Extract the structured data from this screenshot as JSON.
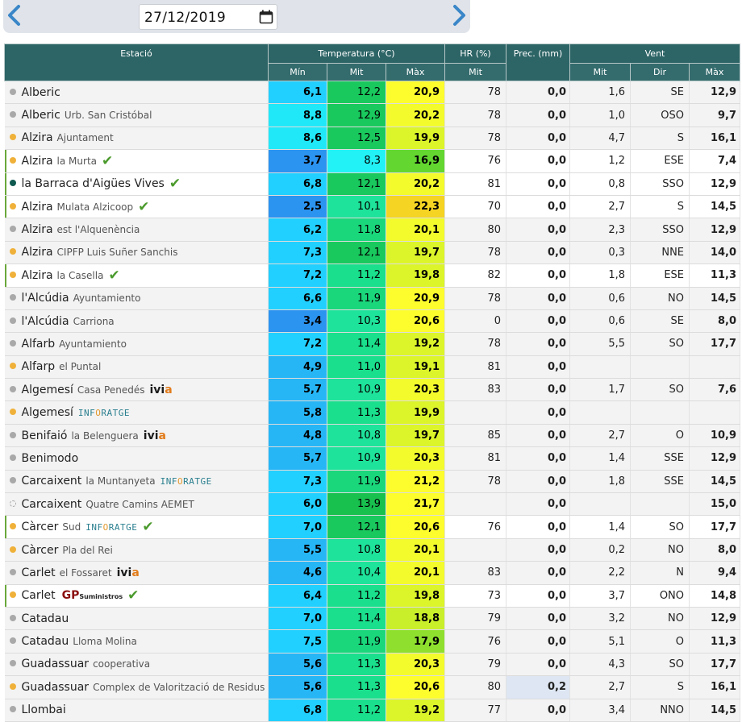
{
  "toolbar": {
    "prev_icon": "chevron-left-icon",
    "next_icon": "chevron-right-icon",
    "date_value": "27/12/2019",
    "calendar_icon": "calendar-icon"
  },
  "table": {
    "headers": {
      "station": "Estació",
      "temperature": "Temperatura (°C)",
      "humidity": "HR (%)",
      "precipitation": "Prec. (mm)",
      "wind": "Vent",
      "temp_min": "Mín",
      "temp_mit": "Mit",
      "temp_max": "Màx",
      "hr_mit": "Mit",
      "wind_mit": "Mit",
      "wind_dir": "Dir",
      "wind_max": "Màx"
    },
    "colors": {
      "dot_grey": "#a9a9a9",
      "dot_orange": "#f0b13a",
      "dot_teal": "#0f5a50",
      "check": "#4a9a2c",
      "header": "#2d6466"
    },
    "rows": [
      {
        "name": "Alberic",
        "loc": "",
        "dot": "grey",
        "hl": false,
        "badge": "",
        "check": false,
        "min": "6,1",
        "mit": "12,2",
        "max": "20,9",
        "hr": "78",
        "prec": "0,0",
        "vmit": "1,6",
        "vdir": "SE",
        "vmax": "12,9",
        "cmin": "#22d0ff",
        "cmit": "#19c95e",
        "cmax": "#fdfd2e"
      },
      {
        "name": "Alberic",
        "loc": "Urb. San Cristóbal",
        "dot": "grey",
        "hl": false,
        "badge": "",
        "check": false,
        "min": "8,8",
        "mit": "12,9",
        "max": "20,2",
        "hr": "78",
        "prec": "0,0",
        "vmit": "1,0",
        "vdir": "OSO",
        "vmax": "9,7",
        "cmin": "#20e8f8",
        "cmit": "#19c95e",
        "cmax": "#f3fb2d"
      },
      {
        "name": "Alzira",
        "loc": "Ajuntament",
        "dot": "orange",
        "hl": false,
        "badge": "",
        "check": false,
        "min": "8,6",
        "mit": "12,5",
        "max": "19,9",
        "hr": "78",
        "prec": "0,0",
        "vmit": "4,7",
        "vdir": "S",
        "vmax": "16,1",
        "cmin": "#20e8f8",
        "cmit": "#19c95e",
        "cmax": "#dcf52a"
      },
      {
        "name": "Alzira",
        "loc": "la Murta",
        "dot": "orange",
        "hl": true,
        "badge": "",
        "check": true,
        "min": "3,7",
        "mit": "8,3",
        "max": "16,9",
        "hr": "76",
        "prec": "0,0",
        "vmit": "1,2",
        "vdir": "ESE",
        "vmax": "7,4",
        "cmin": "#2b93f0",
        "cmit": "#22f2f6",
        "cmax": "#63d630"
      },
      {
        "name": "la Barraca d'Aigües Vives",
        "loc": "",
        "dot": "teal",
        "hl": true,
        "badge": "",
        "check": true,
        "min": "6,8",
        "mit": "12,1",
        "max": "20,2",
        "hr": "81",
        "prec": "0,0",
        "vmit": "0,8",
        "vdir": "SSO",
        "vmax": "12,9",
        "cmin": "#22d0ff",
        "cmit": "#19c95e",
        "cmax": "#f3fb2d"
      },
      {
        "name": "Alzira",
        "loc": "Mulata Alzicoop",
        "dot": "orange",
        "hl": true,
        "badge": "",
        "check": true,
        "min": "2,5",
        "mit": "10,1",
        "max": "22,3",
        "hr": "70",
        "prec": "0,0",
        "vmit": "2,7",
        "vdir": "S",
        "vmax": "14,5",
        "cmin": "#2b93f0",
        "cmit": "#1ee39a",
        "cmax": "#f5d423"
      },
      {
        "name": "Alzira",
        "loc": "est l'Alquenència",
        "dot": "grey",
        "hl": false,
        "badge": "",
        "check": false,
        "min": "6,2",
        "mit": "11,8",
        "max": "20,1",
        "hr": "80",
        "prec": "0,0",
        "vmit": "2,3",
        "vdir": "SSO",
        "vmax": "12,9",
        "cmin": "#22d0ff",
        "cmit": "#1ad77c",
        "cmax": "#f3fb2d"
      },
      {
        "name": "Alzira",
        "loc": "CIPFP Luis Suñer Sanchis",
        "dot": "orange",
        "hl": false,
        "badge": "",
        "check": false,
        "min": "7,3",
        "mit": "12,1",
        "max": "19,7",
        "hr": "78",
        "prec": "0,0",
        "vmit": "0,3",
        "vdir": "NNE",
        "vmax": "14,0",
        "cmin": "#22d0ff",
        "cmit": "#19c95e",
        "cmax": "#dcf52a"
      },
      {
        "name": "Alzira",
        "loc": "la Casella",
        "dot": "orange",
        "hl": true,
        "badge": "",
        "check": true,
        "min": "7,2",
        "mit": "11,2",
        "max": "19,8",
        "hr": "82",
        "prec": "0,0",
        "vmit": "1,8",
        "vdir": "ESE",
        "vmax": "11,3",
        "cmin": "#22d0ff",
        "cmit": "#1adf8c",
        "cmax": "#dcf52a"
      },
      {
        "name": "l'Alcúdia",
        "loc": "Ayuntamiento",
        "dot": "grey",
        "hl": false,
        "badge": "",
        "check": false,
        "min": "6,6",
        "mit": "11,9",
        "max": "20,9",
        "hr": "78",
        "prec": "0,0",
        "vmit": "0,6",
        "vdir": "NO",
        "vmax": "14,5",
        "cmin": "#22d0ff",
        "cmit": "#1ad77c",
        "cmax": "#fdfd2e"
      },
      {
        "name": "l'Alcúdia",
        "loc": "Carriona",
        "dot": "grey",
        "hl": false,
        "badge": "",
        "check": false,
        "min": "3,4",
        "mit": "10,3",
        "max": "20,6",
        "hr": "0",
        "prec": "0,0",
        "vmit": "0,6",
        "vdir": "SE",
        "vmax": "8,0",
        "cmin": "#2b93f0",
        "cmit": "#1ee39a",
        "cmax": "#fdfd2e"
      },
      {
        "name": "Alfarb",
        "loc": "Ayuntamiento",
        "dot": "grey",
        "hl": false,
        "badge": "",
        "check": false,
        "min": "7,2",
        "mit": "11,4",
        "max": "19,2",
        "hr": "78",
        "prec": "0,0",
        "vmit": "5,5",
        "vdir": "SO",
        "vmax": "17,7",
        "cmin": "#22d0ff",
        "cmit": "#1adf8c",
        "cmax": "#dcf52a"
      },
      {
        "name": "Alfarp",
        "loc": "el Puntal",
        "dot": "orange",
        "hl": false,
        "badge": "",
        "check": false,
        "min": "4,9",
        "mit": "11,0",
        "max": "19,1",
        "hr": "81",
        "prec": "0,0",
        "vmit": "",
        "vdir": "",
        "vmax": "",
        "cmin": "#26b6f6",
        "cmit": "#1adf8c",
        "cmax": "#dcf52a"
      },
      {
        "name": "Algemesí",
        "loc": "Casa Penedés",
        "dot": "grey",
        "hl": false,
        "badge": "ivia",
        "check": false,
        "min": "5,7",
        "mit": "10,9",
        "max": "20,3",
        "hr": "83",
        "prec": "0,0",
        "vmit": "1,7",
        "vdir": "SO",
        "vmax": "7,6",
        "cmin": "#26b6f6",
        "cmit": "#1ee39a",
        "cmax": "#f3fb2d"
      },
      {
        "name": "Algemesí",
        "loc": "",
        "dot": "orange",
        "hl": false,
        "badge": "info",
        "check": false,
        "min": "5,8",
        "mit": "11,3",
        "max": "19,9",
        "hr": "",
        "prec": "0,0",
        "vmit": "",
        "vdir": "",
        "vmax": "",
        "cmin": "#26b6f6",
        "cmit": "#1adf8c",
        "cmax": "#dcf52a"
      },
      {
        "name": "Benifaió",
        "loc": "la Belenguera",
        "dot": "grey",
        "hl": false,
        "badge": "ivia",
        "check": false,
        "min": "4,8",
        "mit": "10,8",
        "max": "19,7",
        "hr": "85",
        "prec": "0,0",
        "vmit": "2,7",
        "vdir": "O",
        "vmax": "10,9",
        "cmin": "#26b6f6",
        "cmit": "#1ee39a",
        "cmax": "#dcf52a"
      },
      {
        "name": "Benimodo",
        "loc": "",
        "dot": "grey",
        "hl": false,
        "badge": "",
        "check": false,
        "min": "5,7",
        "mit": "10,9",
        "max": "20,3",
        "hr": "81",
        "prec": "0,0",
        "vmit": "1,4",
        "vdir": "SSE",
        "vmax": "12,9",
        "cmin": "#26b6f6",
        "cmit": "#1ee39a",
        "cmax": "#f3fb2d"
      },
      {
        "name": "Carcaixent",
        "loc": "la Muntanyeta",
        "dot": "grey",
        "hl": false,
        "badge": "info",
        "check": false,
        "min": "7,3",
        "mit": "11,9",
        "max": "21,2",
        "hr": "78",
        "prec": "0,0",
        "vmit": "1,8",
        "vdir": "SSE",
        "vmax": "14,5",
        "cmin": "#22d0ff",
        "cmit": "#1ad77c",
        "cmax": "#fdfd2e"
      },
      {
        "name": "Carcaixent",
        "loc": "Quatre Camins AEMET",
        "dot": "dashed",
        "hl": false,
        "badge": "",
        "check": false,
        "min": "6,0",
        "mit": "13,9",
        "max": "21,7",
        "hr": "",
        "prec": "0,0",
        "vmit": "",
        "vdir": "",
        "vmax": "15,0",
        "cmin": "#22d0ff",
        "cmit": "#18c04e",
        "cmax": "#fdfd2e"
      },
      {
        "name": "Càrcer",
        "loc": "Sud",
        "dot": "orange",
        "hl": true,
        "badge": "info",
        "check": true,
        "min": "7,0",
        "mit": "12,1",
        "max": "20,6",
        "hr": "76",
        "prec": "0,0",
        "vmit": "1,4",
        "vdir": "SO",
        "vmax": "17,7",
        "cmin": "#22d0ff",
        "cmit": "#19c95e",
        "cmax": "#fdfd2e"
      },
      {
        "name": "Càrcer",
        "loc": "Pla del Rei",
        "dot": "orange",
        "hl": false,
        "badge": "",
        "check": false,
        "min": "5,5",
        "mit": "10,8",
        "max": "20,1",
        "hr": "",
        "prec": "0,0",
        "vmit": "0,2",
        "vdir": "NO",
        "vmax": "8,0",
        "cmin": "#26b6f6",
        "cmit": "#1ee39a",
        "cmax": "#f3fb2d"
      },
      {
        "name": "Carlet",
        "loc": "el Fossaret",
        "dot": "grey",
        "hl": false,
        "badge": "ivia",
        "check": false,
        "min": "4,6",
        "mit": "10,4",
        "max": "20,1",
        "hr": "83",
        "prec": "0,0",
        "vmit": "2,2",
        "vdir": "N",
        "vmax": "9,4",
        "cmin": "#26b6f6",
        "cmit": "#1ee39a",
        "cmax": "#f3fb2d"
      },
      {
        "name": "Carlet",
        "loc": "",
        "dot": "orange",
        "hl": true,
        "badge": "gp",
        "check": true,
        "min": "6,4",
        "mit": "11,2",
        "max": "19,8",
        "hr": "73",
        "prec": "0,0",
        "vmit": "3,7",
        "vdir": "ONO",
        "vmax": "14,8",
        "cmin": "#22d0ff",
        "cmit": "#1adf8c",
        "cmax": "#dcf52a"
      },
      {
        "name": "Catadau",
        "loc": "",
        "dot": "grey",
        "hl": false,
        "badge": "",
        "check": false,
        "min": "7,0",
        "mit": "11,4",
        "max": "18,8",
        "hr": "79",
        "prec": "0,0",
        "vmit": "3,2",
        "vdir": "NO",
        "vmax": "12,9",
        "cmin": "#22d0ff",
        "cmit": "#1adf8c",
        "cmax": "#c9ee2a"
      },
      {
        "name": "Catadau",
        "loc": "Lloma Molina",
        "dot": "grey",
        "hl": false,
        "badge": "",
        "check": false,
        "min": "7,5",
        "mit": "11,9",
        "max": "17,9",
        "hr": "76",
        "prec": "0,0",
        "vmit": "5,1",
        "vdir": "O",
        "vmax": "11,3",
        "cmin": "#22d0ff",
        "cmit": "#1ad77c",
        "cmax": "#8fe02e"
      },
      {
        "name": "Guadassuar",
        "loc": "cooperativa",
        "dot": "grey",
        "hl": false,
        "badge": "",
        "check": false,
        "min": "5,6",
        "mit": "11,3",
        "max": "20,3",
        "hr": "79",
        "prec": "0,0",
        "vmit": "4,3",
        "vdir": "SO",
        "vmax": "17,7",
        "cmin": "#26b6f6",
        "cmit": "#1adf8c",
        "cmax": "#f3fb2d"
      },
      {
        "name": "Guadassuar",
        "loc": "Complex de Valorització de Residus",
        "dot": "orange",
        "hl": false,
        "badge": "",
        "check": false,
        "min": "5,6",
        "mit": "11,3",
        "max": "20,6",
        "hr": "80",
        "prec": "0,2",
        "rain": true,
        "vmit": "2,7",
        "vdir": "S",
        "vmax": "16,1",
        "cmin": "#26b6f6",
        "cmit": "#1adf8c",
        "cmax": "#fdfd2e"
      },
      {
        "name": "Llombai",
        "loc": "",
        "dot": "grey",
        "hl": false,
        "badge": "",
        "check": false,
        "min": "6,8",
        "mit": "11,2",
        "max": "19,2",
        "hr": "77",
        "prec": "0,0",
        "vmit": "3,4",
        "vdir": "NNO",
        "vmax": "14,5",
        "cmin": "#22d0ff",
        "cmit": "#1adf8c",
        "cmax": "#dcf52a"
      }
    ]
  },
  "badges": {
    "ivia_a": "ivi",
    "ivia_b": "a",
    "info_a": "INF",
    "info_b": "O",
    "info_c": "RATGE",
    "gp_a": "GP",
    "gp_b": "Suministros",
    "check_glyph": "✔"
  }
}
